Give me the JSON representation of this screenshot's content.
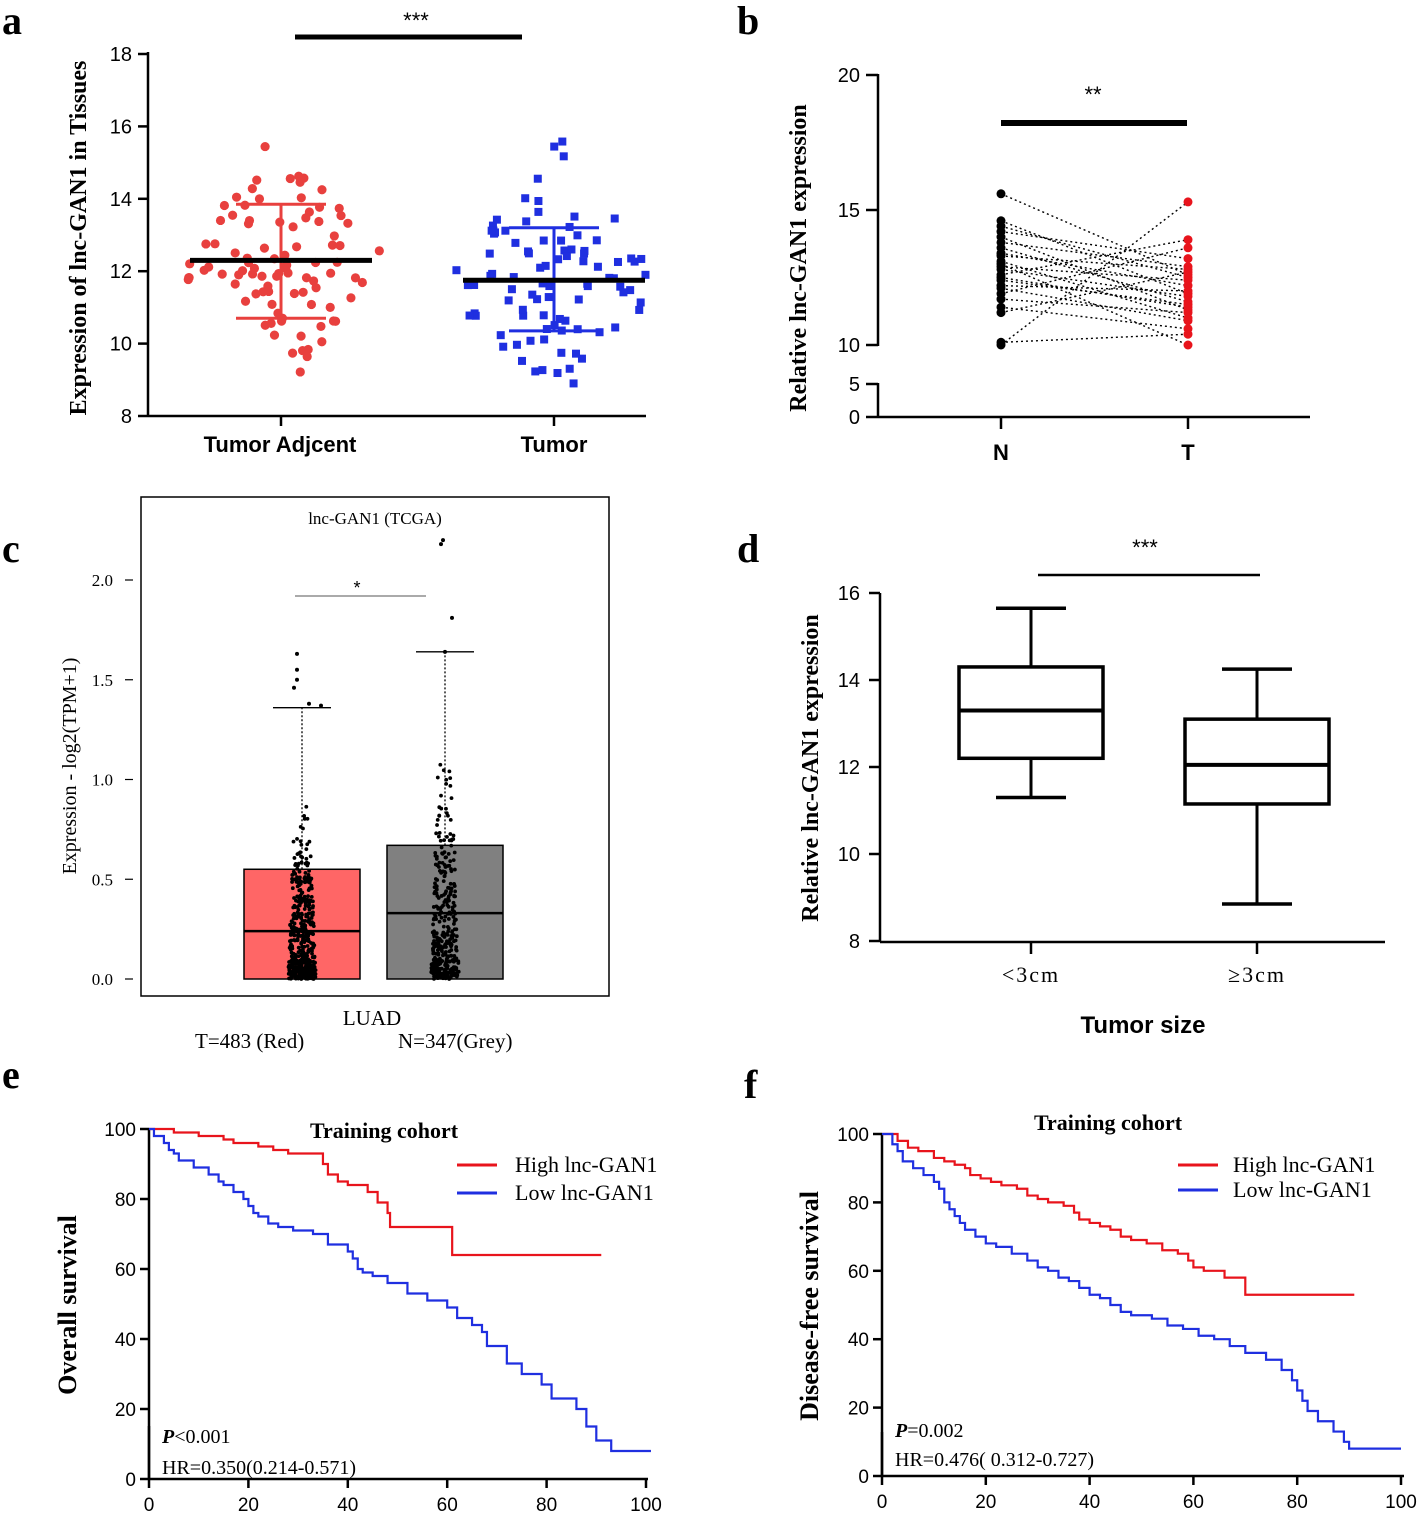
{
  "figure": {
    "panels": {
      "a": {
        "letter": "a",
        "ylabel": "Expression of lnc-GAN1 in Tissues",
        "significance": "***",
        "groups": [
          "Tumor Adjcent",
          "Tumor"
        ],
        "ylim": [
          8,
          18
        ],
        "yticks": [
          8,
          10,
          12,
          14,
          16,
          18
        ],
        "mean": [
          12.3,
          11.75
        ],
        "sd_low": [
          10.7,
          10.35
        ],
        "sd_high": [
          13.85,
          13.2
        ],
        "colors": [
          "#e8403e",
          "#1f2fe0"
        ]
      },
      "b": {
        "letter": "b",
        "ylabel": "Relative lnc-GAN1 expression",
        "significance": "**",
        "categories": [
          "N",
          "T"
        ],
        "ytick_labels_upper": [
          "10",
          "15",
          "20"
        ],
        "ytick_labels_lower": [
          "0",
          "5"
        ],
        "pairs": [
          [
            15.6,
            12.6
          ],
          [
            14.6,
            11.9
          ],
          [
            14.4,
            12.5
          ],
          [
            14.2,
            13.2
          ],
          [
            14.0,
            11.3
          ],
          [
            13.8,
            12.9
          ],
          [
            13.6,
            11.6
          ],
          [
            13.4,
            12.2
          ],
          [
            13.3,
            12.8
          ],
          [
            13.1,
            11.0
          ],
          [
            12.9,
            12.4
          ],
          [
            12.8,
            11.8
          ],
          [
            12.6,
            13.9
          ],
          [
            12.4,
            11.5
          ],
          [
            12.2,
            12.0
          ],
          [
            12.1,
            10.9
          ],
          [
            11.9,
            13.6
          ],
          [
            11.7,
            11.2
          ],
          [
            11.4,
            10.6
          ],
          [
            11.2,
            12.7
          ],
          [
            10.1,
            10.4
          ],
          [
            10.0,
            15.3
          ],
          [
            13.0,
            10.0
          ],
          [
            12.5,
            11.4
          ]
        ],
        "colors": [
          "#000000",
          "#e8141c"
        ]
      },
      "c": {
        "letter": "c",
        "title": "lnc-GAN1 (TCGA)",
        "ylabel": "Expression - log2(TPM+1)",
        "significance": "*",
        "xlabel": "LUAD",
        "legend_t": "T=483 (Red)",
        "legend_n": "N=347(Grey)",
        "yticks": [
          "0.0",
          "0.5",
          "1.0",
          "1.5",
          "2.0"
        ],
        "boxes": [
          {
            "name": "T",
            "q1": 0.0,
            "median": 0.24,
            "q3": 0.55,
            "whisker_high": 1.36,
            "color": "#ff6666"
          },
          {
            "name": "N",
            "q1": 0.0,
            "median": 0.33,
            "q3": 0.67,
            "whisker_high": 1.64,
            "color": "#808080"
          }
        ]
      },
      "d": {
        "letter": "d",
        "ylabel": "Relative lnc-GAN1 expression",
        "xlabel": "Tumor size",
        "significance": "***",
        "categories": [
          "<3cm",
          "≥3cm"
        ],
        "yticks": [
          "8",
          "10",
          "12",
          "14",
          "16"
        ],
        "boxes": [
          {
            "min": 11.3,
            "q1": 12.2,
            "median": 13.3,
            "q3": 14.3,
            "max": 15.65
          },
          {
            "min": 8.85,
            "q1": 11.15,
            "median": 12.05,
            "q3": 13.1,
            "max": 14.25
          }
        ]
      },
      "e": {
        "letter": "e",
        "title": "Training cohort",
        "ylabel": "Overall survival",
        "yticks": [
          "0",
          "20",
          "40",
          "60",
          "80",
          "100"
        ],
        "xticks": [
          "0",
          "20",
          "40",
          "60",
          "80",
          "100"
        ],
        "legend": [
          "High lnc-GAN1",
          "Low  lnc-GAN1"
        ],
        "p_label": "P",
        "p_value": "<0.001",
        "hr": "HR=0.350(0.214-0.571)",
        "series": [
          {
            "name": "High lnc-GAN1",
            "color": "#e8141c",
            "steps": [
              [
                0,
                100
              ],
              [
                5,
                99
              ],
              [
                10,
                98
              ],
              [
                15,
                97
              ],
              [
                17,
                96
              ],
              [
                22,
                95
              ],
              [
                25,
                94
              ],
              [
                28,
                93
              ],
              [
                35,
                90
              ],
              [
                36,
                87
              ],
              [
                38,
                85
              ],
              [
                40,
                84
              ],
              [
                44,
                82
              ],
              [
                46,
                79
              ],
              [
                48,
                76
              ],
              [
                48.5,
                72
              ],
              [
                61,
                64
              ],
              [
                91,
                64
              ]
            ]
          },
          {
            "name": "Low  lnc-GAN1",
            "color": "#1f2fe0",
            "steps": [
              [
                0,
                100
              ],
              [
                1,
                98
              ],
              [
                3,
                96
              ],
              [
                4,
                94
              ],
              [
                5,
                93
              ],
              [
                6,
                91
              ],
              [
                9,
                89
              ],
              [
                12,
                87
              ],
              [
                14,
                85
              ],
              [
                15,
                84
              ],
              [
                17,
                82
              ],
              [
                19,
                80
              ],
              [
                20,
                78
              ],
              [
                21,
                76
              ],
              [
                22,
                75
              ],
              [
                24,
                73
              ],
              [
                26,
                72
              ],
              [
                29,
                71
              ],
              [
                33,
                70
              ],
              [
                36,
                67
              ],
              [
                40,
                65
              ],
              [
                41,
                63
              ],
              [
                42,
                60
              ],
              [
                43,
                59
              ],
              [
                45,
                58
              ],
              [
                48,
                56
              ],
              [
                52,
                53
              ],
              [
                56,
                51
              ],
              [
                60,
                49
              ],
              [
                62,
                46
              ],
              [
                65,
                44
              ],
              [
                67,
                42
              ],
              [
                68,
                38
              ],
              [
                72,
                33
              ],
              [
                75,
                30
              ],
              [
                79,
                27
              ],
              [
                81,
                23
              ],
              [
                86,
                20
              ],
              [
                88,
                15
              ],
              [
                90,
                11
              ],
              [
                93,
                8
              ],
              [
                101,
                8
              ]
            ]
          }
        ]
      },
      "f": {
        "letter": "f",
        "title": "Training cohort",
        "ylabel": "Disease-free survival",
        "yticks": [
          "0",
          "20",
          "40",
          "60",
          "80",
          "100"
        ],
        "xticks": [
          "0",
          "20",
          "40",
          "60",
          "80",
          "100"
        ],
        "legend": [
          "High  lnc-GAN1",
          "Low  lnc-GAN1"
        ],
        "p_label": "P",
        "p_value": "=0.002",
        "hr": "HR=0.476(   0.312-0.727)",
        "series": [
          {
            "name": "High  lnc-GAN1",
            "color": "#e8141c",
            "steps": [
              [
                0,
                100
              ],
              [
                3,
                98
              ],
              [
                5,
                96
              ],
              [
                7,
                95
              ],
              [
                10,
                93
              ],
              [
                12,
                92
              ],
              [
                14,
                91
              ],
              [
                16,
                90
              ],
              [
                17,
                88
              ],
              [
                19,
                87
              ],
              [
                21,
                86
              ],
              [
                23,
                85
              ],
              [
                26,
                84
              ],
              [
                28,
                82
              ],
              [
                30,
                81
              ],
              [
                32,
                80
              ],
              [
                35,
                79
              ],
              [
                37,
                77
              ],
              [
                38,
                75
              ],
              [
                40,
                74
              ],
              [
                42,
                73
              ],
              [
                44,
                72
              ],
              [
                46,
                70
              ],
              [
                48,
                69
              ],
              [
                51,
                68
              ],
              [
                54,
                66
              ],
              [
                57,
                65
              ],
              [
                59,
                63
              ],
              [
                60,
                61
              ],
              [
                62,
                60
              ],
              [
                66,
                58
              ],
              [
                70,
                53
              ],
              [
                91,
                53
              ]
            ]
          },
          {
            "name": "Low  lnc-GAN1",
            "color": "#1f2fe0",
            "steps": [
              [
                0,
                100
              ],
              [
                2,
                97
              ],
              [
                3,
                95
              ],
              [
                4,
                92
              ],
              [
                6,
                90
              ],
              [
                8,
                88
              ],
              [
                10,
                86
              ],
              [
                11,
                84
              ],
              [
                12,
                80
              ],
              [
                13,
                78
              ],
              [
                14,
                76
              ],
              [
                15,
                74
              ],
              [
                16,
                72
              ],
              [
                18,
                70
              ],
              [
                20,
                68
              ],
              [
                22,
                67
              ],
              [
                25,
                65
              ],
              [
                28,
                63
              ],
              [
                30,
                61
              ],
              [
                32,
                60
              ],
              [
                34,
                58
              ],
              [
                36,
                57
              ],
              [
                38,
                55
              ],
              [
                40,
                53
              ],
              [
                42,
                52
              ],
              [
                44,
                50
              ],
              [
                46,
                48
              ],
              [
                48,
                47
              ],
              [
                52,
                46
              ],
              [
                55,
                44
              ],
              [
                58,
                43
              ],
              [
                61,
                41
              ],
              [
                64,
                40
              ],
              [
                67,
                38
              ],
              [
                70,
                36
              ],
              [
                74,
                34
              ],
              [
                77,
                31
              ],
              [
                79,
                28
              ],
              [
                80,
                25
              ],
              [
                81,
                22
              ],
              [
                82,
                19
              ],
              [
                84,
                16
              ],
              [
                87,
                13
              ],
              [
                89,
                10
              ],
              [
                90,
                8
              ],
              [
                100,
                8
              ]
            ]
          }
        ]
      }
    }
  }
}
